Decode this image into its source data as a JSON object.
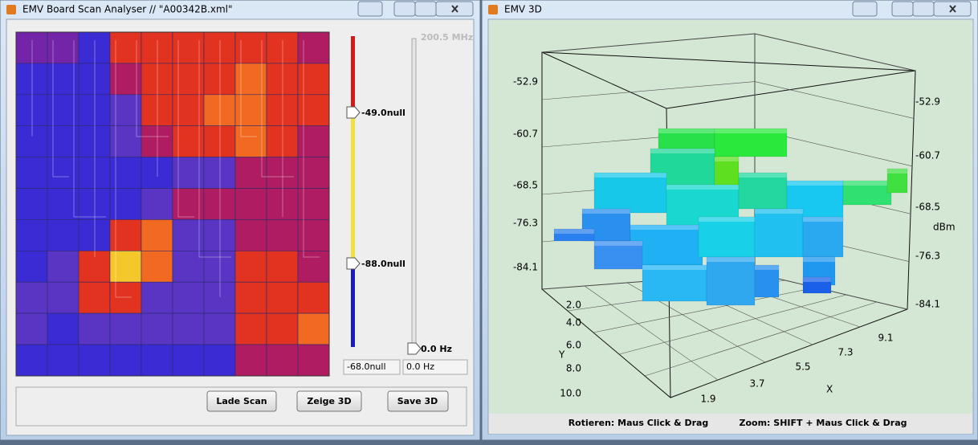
{
  "left_window": {
    "title": "EMV Board Scan Analyser  //  \"A00342B.xml\"",
    "level_slider": {
      "upper_label": "-49.0null",
      "lower_label": "-88.0null",
      "field": "-68.0null"
    },
    "frequency_slider": {
      "max_label": "200.5 MHz",
      "min_label": "0.0 Hz",
      "field": "0.0 Hz"
    },
    "buttons": [
      "Lade Scan",
      "Zeige 3D",
      "Save 3D"
    ]
  },
  "right_window": {
    "title": "EMV 3D",
    "z_ticks_left": [
      "-52.9",
      "-60.7",
      "-68.5",
      "-76.3",
      "-84.1"
    ],
    "z_ticks_right": [
      "-52.9",
      "-60.7",
      "-68.5",
      "-76.3",
      "-84.1"
    ],
    "z_axis_label": "dBm",
    "y_ticks": [
      "2.0",
      "4.0",
      "6.0",
      "8.0",
      "10.0"
    ],
    "y_axis_label": "Y",
    "x_ticks": [
      "1.9",
      "3.7",
      "5.5",
      "7.3",
      "9.1"
    ],
    "x_axis_label": "X",
    "status": [
      "Rotieren: Maus Click & Drag",
      "Zoom: SHIFT + Maus Click & Drag"
    ]
  }
}
